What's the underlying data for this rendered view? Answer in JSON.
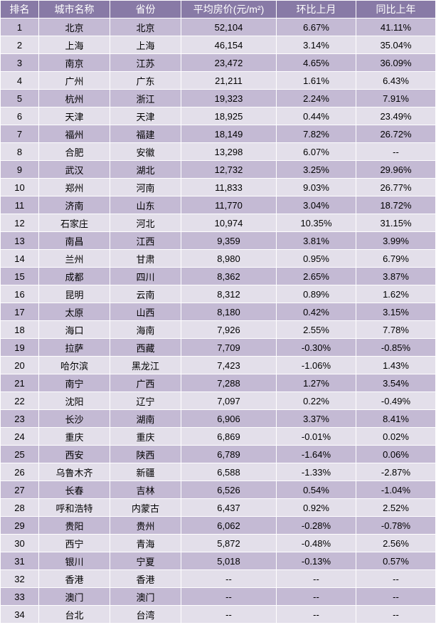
{
  "table": {
    "header_bg": "#887aa6",
    "header_fg": "#ffffff",
    "row_odd_bg": "#c4bad4",
    "row_even_bg": "#e3dfea",
    "border_color": "#ffffff",
    "columns": [
      {
        "key": "rank",
        "label": "排名",
        "class": "col-rank"
      },
      {
        "key": "city",
        "label": "城市名称",
        "class": "col-city"
      },
      {
        "key": "province",
        "label": "省份",
        "class": "col-prov"
      },
      {
        "key": "price",
        "label": "平均房价(元/m²)",
        "class": "col-price"
      },
      {
        "key": "mom",
        "label": "环比上月",
        "class": "col-mom"
      },
      {
        "key": "yoy",
        "label": "同比上年",
        "class": "col-yoy"
      }
    ],
    "rows": [
      {
        "rank": "1",
        "city": "北京",
        "province": "北京",
        "price": "52,104",
        "mom": "6.67%",
        "yoy": "41.11%"
      },
      {
        "rank": "2",
        "city": "上海",
        "province": "上海",
        "price": "46,154",
        "mom": "3.14%",
        "yoy": "35.04%"
      },
      {
        "rank": "3",
        "city": "南京",
        "province": "江苏",
        "price": "23,472",
        "mom": "4.65%",
        "yoy": "36.09%"
      },
      {
        "rank": "4",
        "city": "广州",
        "province": "广东",
        "price": "21,211",
        "mom": "1.61%",
        "yoy": "6.43%"
      },
      {
        "rank": "5",
        "city": "杭州",
        "province": "浙江",
        "price": "19,323",
        "mom": "2.24%",
        "yoy": "7.91%"
      },
      {
        "rank": "6",
        "city": "天津",
        "province": "天津",
        "price": "18,925",
        "mom": "0.44%",
        "yoy": "23.49%"
      },
      {
        "rank": "7",
        "city": "福州",
        "province": "福建",
        "price": "18,149",
        "mom": "7.82%",
        "yoy": "26.72%"
      },
      {
        "rank": "8",
        "city": "合肥",
        "province": "安徽",
        "price": "13,298",
        "mom": "6.07%",
        "yoy": "--"
      },
      {
        "rank": "9",
        "city": "武汉",
        "province": "湖北",
        "price": "12,732",
        "mom": "3.25%",
        "yoy": "29.96%"
      },
      {
        "rank": "10",
        "city": "郑州",
        "province": "河南",
        "price": "11,833",
        "mom": "9.03%",
        "yoy": "26.77%"
      },
      {
        "rank": "11",
        "city": "济南",
        "province": "山东",
        "price": "11,770",
        "mom": "3.04%",
        "yoy": "18.72%"
      },
      {
        "rank": "12",
        "city": "石家庄",
        "province": "河北",
        "price": "10,974",
        "mom": "10.35%",
        "yoy": "31.15%"
      },
      {
        "rank": "13",
        "city": "南昌",
        "province": "江西",
        "price": "9,359",
        "mom": "3.81%",
        "yoy": "3.99%"
      },
      {
        "rank": "14",
        "city": "兰州",
        "province": "甘肃",
        "price": "8,980",
        "mom": "0.95%",
        "yoy": "6.79%"
      },
      {
        "rank": "15",
        "city": "成都",
        "province": "四川",
        "price": "8,362",
        "mom": "2.65%",
        "yoy": "3.87%"
      },
      {
        "rank": "16",
        "city": "昆明",
        "province": "云南",
        "price": "8,312",
        "mom": "0.89%",
        "yoy": "1.62%"
      },
      {
        "rank": "17",
        "city": "太原",
        "province": "山西",
        "price": "8,180",
        "mom": "0.42%",
        "yoy": "3.15%"
      },
      {
        "rank": "18",
        "city": "海口",
        "province": "海南",
        "price": "7,926",
        "mom": "2.55%",
        "yoy": "7.78%"
      },
      {
        "rank": "19",
        "city": "拉萨",
        "province": "西藏",
        "price": "7,709",
        "mom": "-0.30%",
        "yoy": "-0.85%"
      },
      {
        "rank": "20",
        "city": "哈尔滨",
        "province": "黑龙江",
        "price": "7,423",
        "mom": "-1.06%",
        "yoy": "1.43%"
      },
      {
        "rank": "21",
        "city": "南宁",
        "province": "广西",
        "price": "7,288",
        "mom": "1.27%",
        "yoy": "3.54%"
      },
      {
        "rank": "22",
        "city": "沈阳",
        "province": "辽宁",
        "price": "7,097",
        "mom": "0.22%",
        "yoy": "-0.49%"
      },
      {
        "rank": "23",
        "city": "长沙",
        "province": "湖南",
        "price": "6,906",
        "mom": "3.37%",
        "yoy": "8.41%"
      },
      {
        "rank": "24",
        "city": "重庆",
        "province": "重庆",
        "price": "6,869",
        "mom": "-0.01%",
        "yoy": "0.02%"
      },
      {
        "rank": "25",
        "city": "西安",
        "province": "陕西",
        "price": "6,789",
        "mom": "-1.64%",
        "yoy": "0.06%"
      },
      {
        "rank": "26",
        "city": "乌鲁木齐",
        "province": "新疆",
        "price": "6,588",
        "mom": "-1.33%",
        "yoy": "-2.87%"
      },
      {
        "rank": "27",
        "city": "长春",
        "province": "吉林",
        "price": "6,526",
        "mom": "0.54%",
        "yoy": "-1.04%"
      },
      {
        "rank": "28",
        "city": "呼和浩特",
        "province": "内蒙古",
        "price": "6,437",
        "mom": "0.92%",
        "yoy": "2.52%"
      },
      {
        "rank": "29",
        "city": "贵阳",
        "province": "贵州",
        "price": "6,062",
        "mom": "-0.28%",
        "yoy": "-0.78%"
      },
      {
        "rank": "30",
        "city": "西宁",
        "province": "青海",
        "price": "5,872",
        "mom": "-0.48%",
        "yoy": "2.56%"
      },
      {
        "rank": "31",
        "city": "银川",
        "province": "宁夏",
        "price": "5,018",
        "mom": "-0.13%",
        "yoy": "0.57%"
      },
      {
        "rank": "32",
        "city": "香港",
        "province": "香港",
        "price": "--",
        "mom": "--",
        "yoy": "--"
      },
      {
        "rank": "33",
        "city": "澳门",
        "province": "澳门",
        "price": "--",
        "mom": "--",
        "yoy": "--"
      },
      {
        "rank": "34",
        "city": "台北",
        "province": "台湾",
        "price": "--",
        "mom": "--",
        "yoy": "--"
      }
    ]
  }
}
